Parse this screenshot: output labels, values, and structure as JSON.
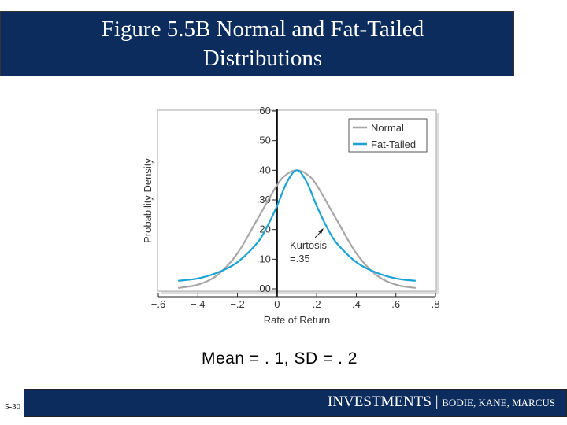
{
  "title": {
    "line1": "Figure 5.5B Normal and Fat-Tailed",
    "line2": "Distributions"
  },
  "caption": "Mean = . 1,  SD = . 2",
  "slide_number": "5-30",
  "footer": {
    "brand": "INVESTMENTS",
    "separator": "|",
    "authors": "BODIE, KANE, MARCUS"
  },
  "colors": {
    "navy": "#0b2c5c",
    "normal": "#a6a6a6",
    "fat_tailed": "#1aa3d4"
  },
  "chart_data": {
    "type": "line",
    "xlabel": "Rate of Return",
    "ylabel": "Probability Density",
    "xlim": [
      -0.6,
      0.8
    ],
    "ylim": [
      0,
      0.6
    ],
    "xticks": [
      "−.6",
      "−.4",
      "−.2",
      "0",
      ".2",
      ".4",
      ".6",
      ".8"
    ],
    "xtick_values": [
      -0.6,
      -0.4,
      -0.2,
      0,
      0.2,
      0.4,
      0.6,
      0.8
    ],
    "yticks": [
      ".00",
      ".10",
      ".20",
      ".30",
      ".40",
      ".50",
      ".60"
    ],
    "ytick_values": [
      0,
      0.1,
      0.2,
      0.3,
      0.4,
      0.5,
      0.6
    ],
    "legend_position": "top-right",
    "annotation": {
      "line1": "Kurtosis",
      "line2": "=.35",
      "points_to": [
        0.22,
        0.25
      ]
    },
    "series": [
      {
        "name": "Normal",
        "x": [
          -0.5,
          -0.4,
          -0.3,
          -0.2,
          -0.1,
          0,
          0.05,
          0.1,
          0.15,
          0.2,
          0.3,
          0.4,
          0.5,
          0.6,
          0.7
        ],
        "y": [
          0.003,
          0.014,
          0.047,
          0.12,
          0.234,
          0.35,
          0.387,
          0.4,
          0.387,
          0.35,
          0.234,
          0.12,
          0.047,
          0.014,
          0.003
        ]
      },
      {
        "name": "Fat-Tailed",
        "x": [
          -0.5,
          -0.4,
          -0.3,
          -0.2,
          -0.1,
          -0.05,
          0,
          0.05,
          0.1,
          0.15,
          0.2,
          0.25,
          0.3,
          0.4,
          0.5,
          0.6,
          0.7
        ],
        "y": [
          0.027,
          0.035,
          0.055,
          0.09,
          0.155,
          0.21,
          0.28,
          0.36,
          0.4,
          0.36,
          0.28,
          0.21,
          0.155,
          0.09,
          0.055,
          0.035,
          0.027
        ]
      }
    ]
  }
}
